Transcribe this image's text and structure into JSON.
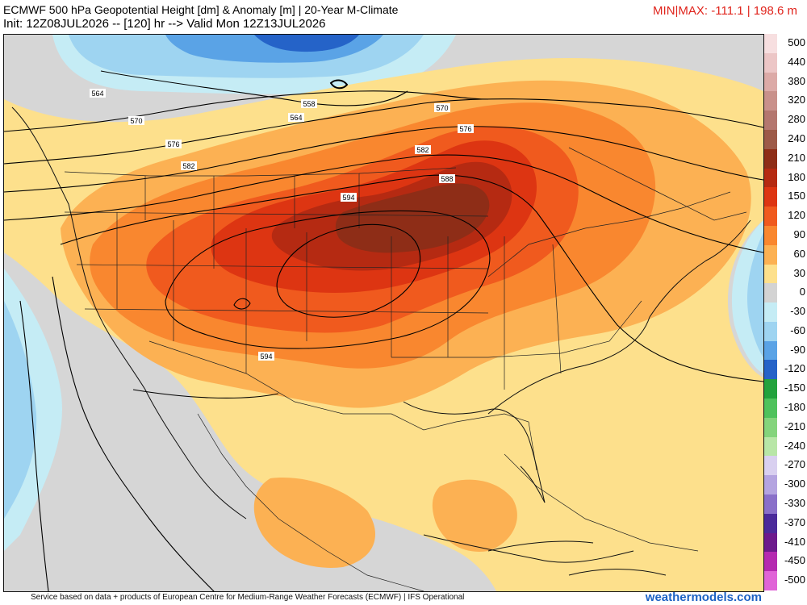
{
  "header": {
    "title": "ECMWF 500 hPa Geopotential Height [dm] & Anomaly [m] | 20-Year M-Climate",
    "init": "Init: 12Z08JUL2026 -- [120] hr --> Valid Mon 12Z13JUL2026",
    "minmax": "MIN|MAX: -111.1 | 198.6 m"
  },
  "map": {
    "contour_labels": [
      "558",
      "564",
      "570",
      "576",
      "582",
      "588",
      "594",
      "564",
      "570",
      "576",
      "582",
      "594"
    ]
  },
  "colorbar": {
    "labels": [
      "500",
      "440",
      "380",
      "320",
      "280",
      "240",
      "210",
      "180",
      "150",
      "120",
      "90",
      "60",
      "30",
      "0",
      "-30",
      "-60",
      "-90",
      "-120",
      "-150",
      "-180",
      "-210",
      "-240",
      "-270",
      "-300",
      "-330",
      "-370",
      "-410",
      "-450",
      "-500"
    ],
    "colors": [
      "#f7dfe0",
      "#ecc6c6",
      "#dcaaa7",
      "#c9918b",
      "#b4776f",
      "#9d5a48",
      "#8e2d17",
      "#b52a12",
      "#dd3512",
      "#f05a1e",
      "#f9872f",
      "#fcb153",
      "#fde08c",
      "#d3d3d3",
      "#c5ecf5",
      "#9ed4f1",
      "#5aa3e6",
      "#2563c8",
      "#23a23d",
      "#4fc25c",
      "#84d47c",
      "#b8e6a7",
      "#d9d0f0",
      "#b4a4e0",
      "#8a70c9",
      "#4b2a9a",
      "#6d1a8c",
      "#b52ab0",
      "#e064d7"
    ]
  },
  "footer": {
    "credit": "Service based on data + products of European Centre for Medium-Range Weather Forecasts (ECMWF) | IFS Operational",
    "brand": "weathermodels.com"
  }
}
